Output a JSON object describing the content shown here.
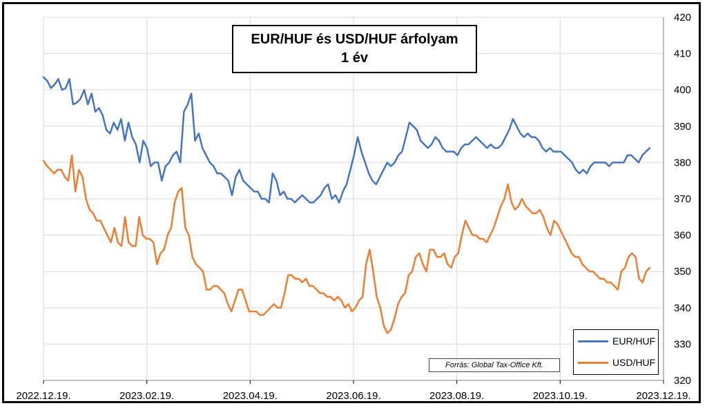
{
  "chart_data": {
    "type": "line",
    "title_line1": "EUR/HUF és USD/HUF árfolyam",
    "title_line2": "1 év",
    "source": "Forrás: Global Tax-Office Kft.",
    "legend_position": "bottom-right",
    "grid": true,
    "ylim": [
      320,
      420
    ],
    "yticks": [
      "420",
      "410",
      "400",
      "390",
      "380",
      "370",
      "360",
      "350",
      "340",
      "330",
      "320"
    ],
    "xticks": [
      "2022.12.19.",
      "2023.02.19.",
      "2023.04.19.",
      "2023.06.19.",
      "2023.08.19.",
      "2023.10.19.",
      "2023.12.19."
    ],
    "colors": {
      "eur": "#4472C4",
      "usd": "#ED7D31"
    },
    "series": [
      {
        "name": "EUR/HUF",
        "values": [
          403.5,
          402.5,
          400.5,
          401.5,
          403,
          400,
          400.5,
          403,
          396,
          396.5,
          397.5,
          400,
          396,
          399,
          394,
          395,
          393,
          389,
          388,
          391,
          389,
          392,
          386,
          391,
          387,
          385,
          380,
          386,
          384,
          379,
          380,
          380,
          375,
          379,
          380,
          382,
          383,
          380,
          394,
          396,
          399,
          386,
          388,
          384,
          382,
          380,
          379,
          377,
          377,
          376,
          375,
          371,
          376,
          378,
          375,
          374,
          373,
          372,
          372,
          370,
          370,
          369,
          377,
          375,
          371,
          372,
          370,
          370,
          369,
          370,
          371,
          370,
          369,
          369,
          370,
          371,
          373,
          374,
          370,
          371,
          369,
          372,
          374,
          378,
          382,
          387,
          383,
          380,
          377,
          375,
          374,
          376,
          378,
          380,
          379,
          380,
          382,
          383,
          387,
          391,
          390,
          389,
          386,
          385,
          384,
          385,
          387,
          386,
          384,
          383,
          383,
          383,
          382,
          384,
          385,
          385,
          386,
          387,
          386,
          385,
          384,
          385,
          384,
          384,
          385,
          387,
          389,
          392,
          390,
          388,
          387,
          388,
          387,
          387,
          386,
          384,
          383,
          384,
          383,
          383,
          383,
          382,
          381,
          380,
          378,
          377,
          378,
          377,
          379,
          380,
          380,
          380,
          380,
          379,
          380,
          380,
          380,
          380,
          382,
          382,
          381,
          380,
          382,
          383,
          384
        ]
      },
      {
        "name": "USD/HUF",
        "values": [
          380.5,
          379,
          378,
          377,
          378,
          378,
          376,
          375,
          382,
          372,
          378,
          376,
          370,
          367,
          366,
          364,
          364,
          362,
          360,
          358,
          362,
          358,
          357,
          365,
          358,
          357,
          357,
          365,
          360,
          359,
          359,
          358,
          352,
          355,
          356,
          360,
          362,
          369,
          372,
          373,
          362,
          360,
          354,
          352,
          351,
          350,
          345,
          345,
          346,
          346,
          345,
          344,
          341,
          339,
          342,
          345,
          345,
          342,
          339,
          339,
          339,
          338,
          338,
          339,
          340,
          341,
          340,
          340,
          344,
          349,
          349,
          348,
          348,
          347,
          348,
          346,
          346,
          345,
          344,
          344,
          343,
          343,
          342,
          343,
          342,
          340,
          341,
          339,
          340,
          342,
          343,
          352,
          356,
          350,
          343,
          340,
          335,
          333,
          334,
          337,
          341,
          343,
          344,
          349,
          350,
          354,
          355,
          352,
          350,
          356,
          356,
          354,
          354,
          355,
          352,
          351,
          354,
          355,
          360,
          364,
          362,
          360,
          360,
          359,
          359,
          358,
          360,
          362,
          365,
          368,
          370,
          374,
          369,
          367,
          368,
          370,
          368,
          367,
          366,
          366,
          367,
          365,
          362,
          360,
          364,
          363,
          361,
          359,
          357,
          355,
          354,
          354,
          352,
          351,
          350,
          350,
          349,
          348,
          348,
          347,
          347,
          346,
          345,
          350,
          351,
          354,
          355,
          354,
          348,
          347,
          350,
          351
        ]
      }
    ]
  }
}
